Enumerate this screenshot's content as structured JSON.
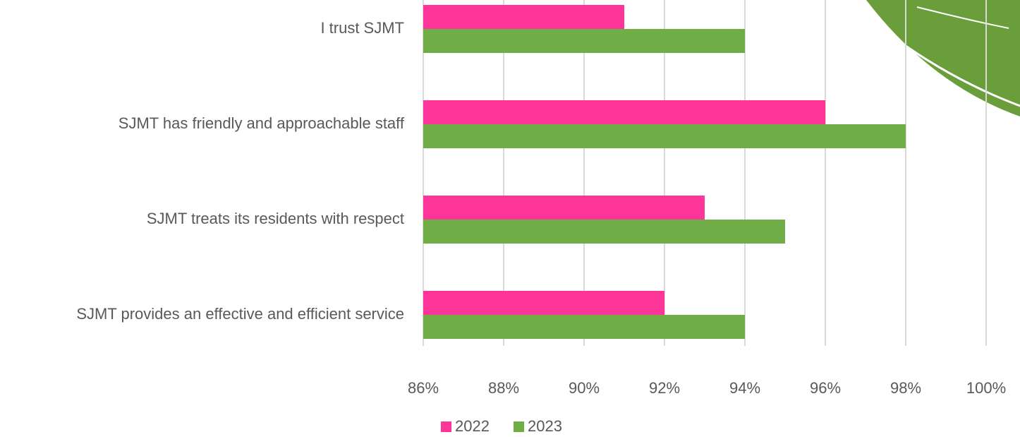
{
  "chart_data": {
    "type": "barh",
    "categories": [
      "I trust SJMT",
      "SJMT has friendly and approachable staff",
      "SJMT treats its residents with respect",
      "SJMT provides an effective and efficient service"
    ],
    "series": [
      {
        "name": "2022",
        "color": "#fd3598",
        "values": [
          91,
          96,
          93,
          92
        ]
      },
      {
        "name": "2023",
        "color": "#70ad47",
        "values": [
          94,
          98,
          95,
          94
        ]
      }
    ],
    "xlim": [
      86,
      100
    ],
    "xticks": [
      {
        "value": 86,
        "label": "86%"
      },
      {
        "value": 88,
        "label": "88%"
      },
      {
        "value": 90,
        "label": "90%"
      },
      {
        "value": 92,
        "label": "92%"
      },
      {
        "value": 94,
        "label": "94%"
      },
      {
        "value": 96,
        "label": "96%"
      },
      {
        "value": 98,
        "label": "98%"
      },
      {
        "value": 100,
        "label": "100%"
      }
    ],
    "grid": true
  }
}
